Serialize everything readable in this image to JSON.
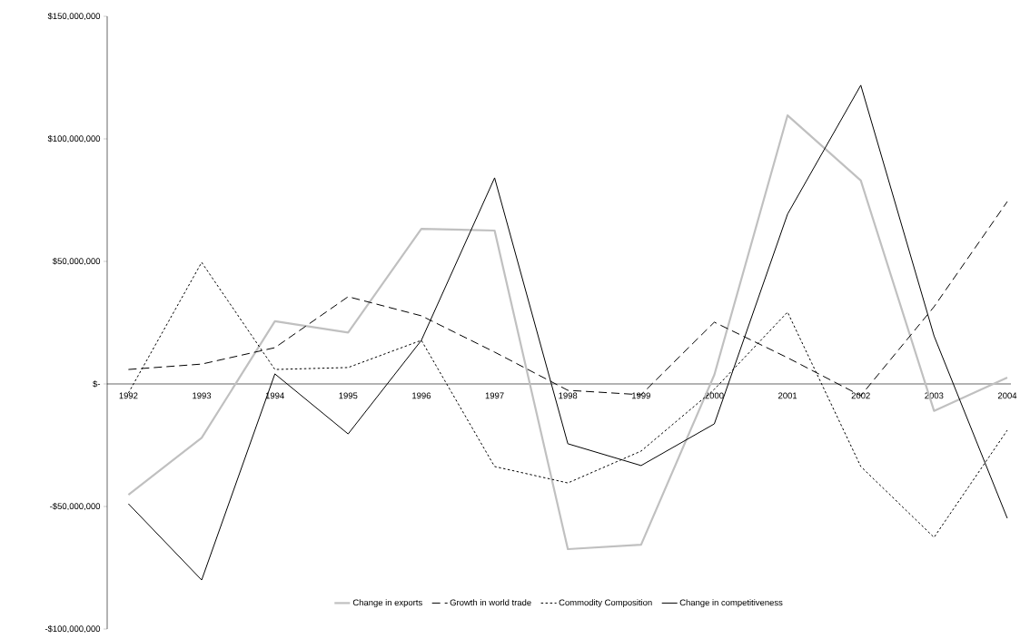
{
  "chart_data": {
    "type": "line",
    "categories": [
      "1992",
      "1993",
      "1994",
      "1995",
      "1996",
      "1997",
      "1998",
      "1999",
      "2000",
      "2001",
      "2002",
      "2003",
      "2004"
    ],
    "series": [
      {
        "name": "Change in exports",
        "color": "#c0c0c0",
        "line_style": "solid",
        "values": [
          -45200000,
          -22000000,
          25600000,
          21000000,
          63300000,
          62600000,
          -67400000,
          -65600000,
          3700000,
          109600000,
          83000000,
          -11000000,
          2600000
        ]
      },
      {
        "name": "Growth in world trade",
        "color": "#000000",
        "line_style": "dashed",
        "values": [
          5900000,
          8100000,
          14800000,
          35600000,
          27800000,
          13000000,
          -2600000,
          -4400000,
          25200000,
          10700000,
          -4800000,
          31500000,
          74400000
        ]
      },
      {
        "name": "Commodity Composition",
        "color": "#000000",
        "line_style": "dotted",
        "values": [
          -3700000,
          49600000,
          5900000,
          6700000,
          17800000,
          -33700000,
          -40400000,
          -27400000,
          -2200000,
          29300000,
          -33700000,
          -62600000,
          -18900000
        ]
      },
      {
        "name": "Change in competitiveness",
        "color": "#000000",
        "line_style": "solid",
        "values": [
          -48900000,
          -80000000,
          4100000,
          -20400000,
          17800000,
          84100000,
          -24400000,
          -33300000,
          -16300000,
          69300000,
          121900000,
          19600000,
          -54800000
        ]
      }
    ],
    "ylim": [
      -100000000,
      150000000
    ],
    "yticks": [
      {
        "value": -100000000,
        "label": "-$100,000,000"
      },
      {
        "value": -50000000,
        "label": "-$50,000,000"
      },
      {
        "value": 0,
        "label": "$-"
      },
      {
        "value": 50000000,
        "label": "$50,000,000"
      },
      {
        "value": 100000000,
        "label": "$100,000,000"
      },
      {
        "value": 150000000,
        "label": "$150,000,000"
      }
    ],
    "grid": false,
    "legend": "bottom",
    "marker": "none"
  }
}
